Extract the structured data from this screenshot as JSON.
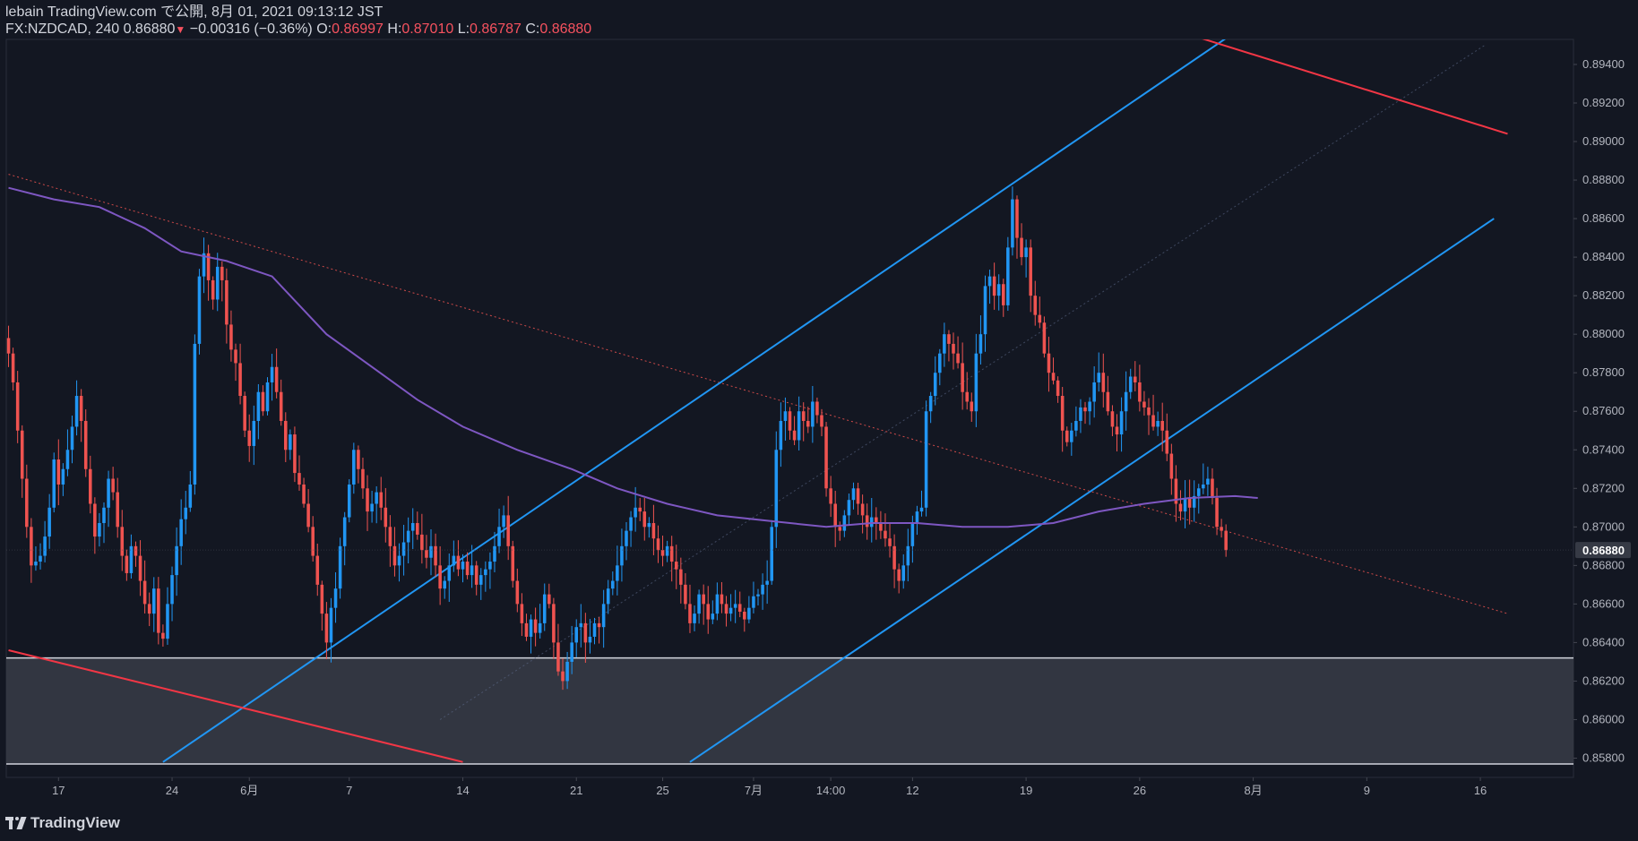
{
  "header": {
    "publish_line": "lebain TradingView.com で公開, 8月 01, 2021 09:13:12 JST",
    "symbol_line_prefix": "FX:NZDCAD, 240 0.86880",
    "change": "−0.00316 (−0.36%)",
    "o_label": "O:",
    "o_value": "0.86997",
    "h_label": "H:",
    "h_value": "0.87010",
    "l_label": "L:",
    "l_value": "0.86787",
    "c_label": "C:",
    "c_value": "0.86880"
  },
  "footer": {
    "brand": "TradingView"
  },
  "colors": {
    "background": "#131722",
    "up": "#2196f3",
    "down": "#ef5350",
    "ma": "#7e57c2",
    "channel": "#2196f3",
    "trend_red": "#f23645",
    "zone": "#363a45"
  },
  "chart_data": {
    "type": "candlestick",
    "symbol": "FX:NZDCAD",
    "interval": "240",
    "ylim": [
      0.857,
      0.8953
    ],
    "y_ticks": [
      "0.89400",
      "0.89200",
      "0.89000",
      "0.88800",
      "0.88600",
      "0.88400",
      "0.88200",
      "0.88000",
      "0.87800",
      "0.87600",
      "0.87400",
      "0.87200",
      "0.87000",
      "0.86800",
      "0.86600",
      "0.86400",
      "0.86200",
      "0.86000",
      "0.85800"
    ],
    "y_tick_values": [
      0.894,
      0.892,
      0.89,
      0.888,
      0.886,
      0.884,
      0.882,
      0.88,
      0.878,
      0.876,
      0.874,
      0.872,
      0.87,
      0.868,
      0.866,
      0.864,
      0.862,
      0.86,
      0.858
    ],
    "last_price_label": "0.86880",
    "last_price": 0.8688,
    "x_ticks": [
      {
        "label": "17",
        "i": 11
      },
      {
        "label": "24",
        "i": 36
      },
      {
        "label": "6月",
        "i": 53
      },
      {
        "label": "7",
        "i": 75
      },
      {
        "label": "14",
        "i": 100
      },
      {
        "label": "21",
        "i": 125
      },
      {
        "label": "25",
        "i": 144
      },
      {
        "label": "7月",
        "i": 164
      },
      {
        "label": "14:00",
        "i": 181
      },
      {
        "label": "12",
        "i": 199
      },
      {
        "label": "19",
        "i": 224
      },
      {
        "label": "26",
        "i": 249
      },
      {
        "label": "8月",
        "i": 274
      },
      {
        "label": "9",
        "i": 299
      },
      {
        "label": "16",
        "i": 324
      }
    ],
    "n_slots": 345,
    "closes": [
      0.879,
      0.8775,
      0.875,
      0.8725,
      0.87,
      0.868,
      0.8682,
      0.8685,
      0.8695,
      0.871,
      0.8735,
      0.8722,
      0.873,
      0.874,
      0.8752,
      0.8768,
      0.8755,
      0.873,
      0.8712,
      0.8695,
      0.8702,
      0.871,
      0.8725,
      0.8718,
      0.87,
      0.8685,
      0.8676,
      0.869,
      0.8685,
      0.8672,
      0.866,
      0.8655,
      0.8668,
      0.8645,
      0.8642,
      0.866,
      0.8675,
      0.869,
      0.8704,
      0.871,
      0.8722,
      0.8795,
      0.883,
      0.8842,
      0.8828,
      0.8818,
      0.8835,
      0.8828,
      0.8805,
      0.8792,
      0.8785,
      0.8768,
      0.875,
      0.8742,
      0.8755,
      0.877,
      0.876,
      0.8775,
      0.8783,
      0.877,
      0.8755,
      0.874,
      0.8748,
      0.8728,
      0.8722,
      0.8712,
      0.87,
      0.8685,
      0.867,
      0.8655,
      0.864,
      0.8658,
      0.8668,
      0.869,
      0.8705,
      0.8722,
      0.874,
      0.873,
      0.872,
      0.8708,
      0.8712,
      0.8718,
      0.871,
      0.87,
      0.869,
      0.868,
      0.8685,
      0.8692,
      0.8698,
      0.8702,
      0.8696,
      0.8688,
      0.8684,
      0.869,
      0.868,
      0.8668,
      0.8672,
      0.868,
      0.8685,
      0.8678,
      0.8682,
      0.8675,
      0.868,
      0.867,
      0.8675,
      0.8678,
      0.8682,
      0.869,
      0.87,
      0.8706,
      0.869,
      0.8672,
      0.866,
      0.865,
      0.8643,
      0.8652,
      0.8645,
      0.865,
      0.8665,
      0.866,
      0.864,
      0.8625,
      0.862,
      0.863,
      0.864,
      0.8648,
      0.865,
      0.864,
      0.8643,
      0.865,
      0.8648,
      0.866,
      0.8668,
      0.8672,
      0.868,
      0.869,
      0.8698,
      0.8705,
      0.871,
      0.8708,
      0.87,
      0.8702,
      0.8694,
      0.8688,
      0.8685,
      0.869,
      0.8682,
      0.8678,
      0.867,
      0.866,
      0.865,
      0.8655,
      0.8665,
      0.866,
      0.8652,
      0.8655,
      0.8665,
      0.866,
      0.8655,
      0.8658,
      0.866,
      0.8656,
      0.8652,
      0.8658,
      0.8664,
      0.8665,
      0.867,
      0.8672,
      0.87,
      0.874,
      0.8755,
      0.876,
      0.875,
      0.8745,
      0.876,
      0.8755,
      0.8752,
      0.8765,
      0.8758,
      0.8752,
      0.872,
      0.8712,
      0.87,
      0.8698,
      0.8706,
      0.8714,
      0.872,
      0.8712,
      0.8706,
      0.87,
      0.8705,
      0.8702,
      0.8698,
      0.8694,
      0.869,
      0.8678,
      0.8672,
      0.868,
      0.869,
      0.8702,
      0.8708,
      0.871,
      0.876,
      0.8768,
      0.878,
      0.879,
      0.88,
      0.8795,
      0.879,
      0.8785,
      0.877,
      0.8765,
      0.876,
      0.879,
      0.88,
      0.8825,
      0.883,
      0.882,
      0.8826,
      0.8815,
      0.8845,
      0.887,
      0.885,
      0.884,
      0.8845,
      0.882,
      0.881,
      0.8806,
      0.879,
      0.878,
      0.8776,
      0.8768,
      0.875,
      0.8744,
      0.875,
      0.8755,
      0.8762,
      0.876,
      0.8765,
      0.8775,
      0.878,
      0.877,
      0.876,
      0.8752,
      0.8748,
      0.876,
      0.877,
      0.8778,
      0.8775,
      0.8765,
      0.8762,
      0.8758,
      0.8752,
      0.8755,
      0.875,
      0.8738,
      0.8725,
      0.8712,
      0.8708,
      0.8715,
      0.871,
      0.8716,
      0.872,
      0.8722,
      0.8725,
      0.8715,
      0.87,
      0.8698,
      0.8688
    ],
    "ma_points": [
      [
        0,
        0.8876
      ],
      [
        10,
        0.887
      ],
      [
        20,
        0.8866
      ],
      [
        30,
        0.8855
      ],
      [
        38,
        0.8843
      ],
      [
        48,
        0.8838
      ],
      [
        58,
        0.883
      ],
      [
        70,
        0.88
      ],
      [
        80,
        0.8783
      ],
      [
        90,
        0.8766
      ],
      [
        100,
        0.8752
      ],
      [
        112,
        0.874
      ],
      [
        124,
        0.873
      ],
      [
        134,
        0.872
      ],
      [
        145,
        0.8712
      ],
      [
        156,
        0.8706
      ],
      [
        168,
        0.8703
      ],
      [
        180,
        0.87
      ],
      [
        190,
        0.8702
      ],
      [
        200,
        0.8702
      ],
      [
        210,
        0.87
      ],
      [
        220,
        0.87
      ],
      [
        230,
        0.8702
      ],
      [
        240,
        0.8708
      ],
      [
        250,
        0.8712
      ],
      [
        260,
        0.8715
      ],
      [
        270,
        0.8716
      ],
      [
        275,
        0.8715
      ]
    ],
    "channel_upper": [
      [
        34,
        0.8578
      ],
      [
        272,
        0.896
      ]
    ],
    "channel_lower": [
      [
        150,
        0.8578
      ],
      [
        327,
        0.886
      ]
    ],
    "channel_mid": [
      [
        95,
        0.86
      ],
      [
        325,
        0.895
      ]
    ],
    "red_trend_upper": [
      [
        262,
        0.8954
      ],
      [
        330,
        0.8904
      ]
    ],
    "red_trend_lower": [
      [
        0,
        0.8636
      ],
      [
        100,
        0.8578
      ]
    ],
    "dotted_trend": [
      [
        0,
        0.8883
      ],
      [
        330,
        0.8655
      ]
    ],
    "support_zone": [
      0.8632,
      0.8577
    ]
  }
}
